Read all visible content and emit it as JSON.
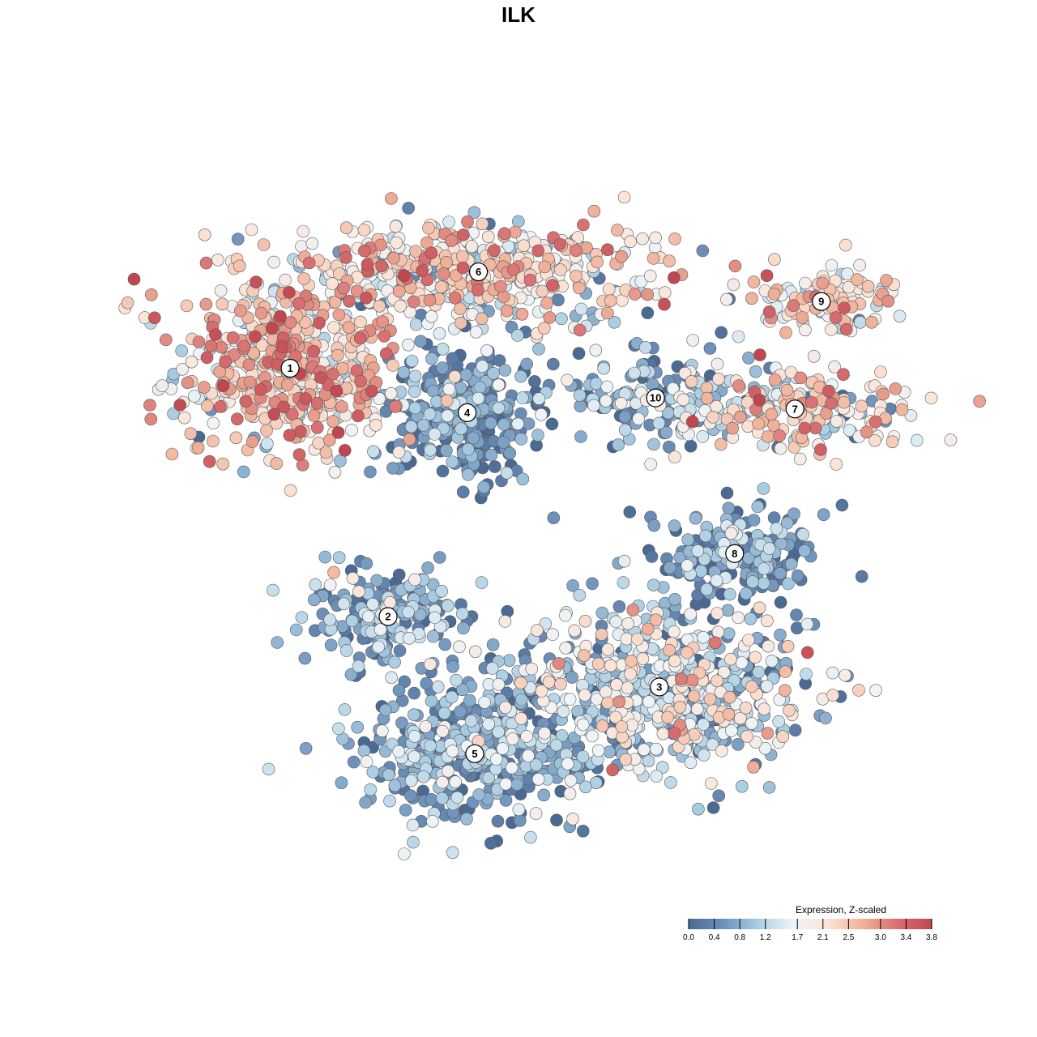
{
  "chart_data": {
    "type": "scatter",
    "title": "ILK",
    "xlabel": "",
    "ylabel": "",
    "xlim": [
      0,
      100
    ],
    "ylim": [
      0,
      100
    ],
    "grid": false,
    "point_style": "filled circles with dark gray outline, colored by expression",
    "legend": {
      "title": "Expression, Z-scaled",
      "placement": "bottom-right",
      "range": [
        0.0,
        3.8
      ],
      "ticks": [
        "0.0",
        "0.4",
        "0.8",
        "1.2",
        "1.7",
        "2.1",
        "2.5",
        "3.0",
        "3.4",
        "3.8"
      ],
      "colors": [
        "#4a6a94",
        "#6d91bb",
        "#a9cde2",
        "#eef4f8",
        "#fbe3d6",
        "#f0b29a",
        "#d86e70",
        "#c0474f"
      ]
    },
    "clusters": [
      {
        "label": "1",
        "x": 17.0,
        "y": 70.0,
        "sx": 7.5,
        "sy": 6.0,
        "n": 520,
        "mean_expr": 2.3,
        "sd_expr": 0.7
      },
      {
        "label": "2",
        "x": 30.0,
        "y": 36.5,
        "sx": 6.0,
        "sy": 3.6,
        "n": 190,
        "mean_expr": 0.75,
        "sd_expr": 0.55
      },
      {
        "label": "3",
        "x": 66.0,
        "y": 27.0,
        "sx": 10.0,
        "sy": 5.5,
        "n": 620,
        "mean_expr": 1.25,
        "sd_expr": 0.75
      },
      {
        "label": "4",
        "x": 40.5,
        "y": 64.0,
        "sx": 4.8,
        "sy": 4.6,
        "n": 330,
        "mean_expr": 0.45,
        "sd_expr": 0.45
      },
      {
        "label": "5",
        "x": 41.5,
        "y": 18.0,
        "sx": 8.0,
        "sy": 4.5,
        "n": 430,
        "mean_expr": 0.7,
        "sd_expr": 0.55
      },
      {
        "label": "6",
        "x": 42.0,
        "y": 83.0,
        "sx": 13.0,
        "sy": 3.3,
        "n": 480,
        "mean_expr": 1.9,
        "sd_expr": 0.75
      },
      {
        "label": "7",
        "x": 84.0,
        "y": 64.5,
        "sx": 7.5,
        "sy": 3.0,
        "n": 200,
        "mean_expr": 1.9,
        "sd_expr": 0.75
      },
      {
        "label": "8",
        "x": 76.0,
        "y": 45.0,
        "sx": 5.5,
        "sy": 3.5,
        "n": 200,
        "mean_expr": 0.6,
        "sd_expr": 0.5
      },
      {
        "label": "9",
        "x": 87.5,
        "y": 79.0,
        "sx": 4.5,
        "sy": 2.3,
        "n": 110,
        "mean_expr": 2.1,
        "sd_expr": 0.7
      },
      {
        "label": "10",
        "x": 65.5,
        "y": 66.0,
        "sx": 6.5,
        "sy": 3.2,
        "n": 150,
        "mean_expr": 0.9,
        "sd_expr": 0.6
      }
    ]
  }
}
